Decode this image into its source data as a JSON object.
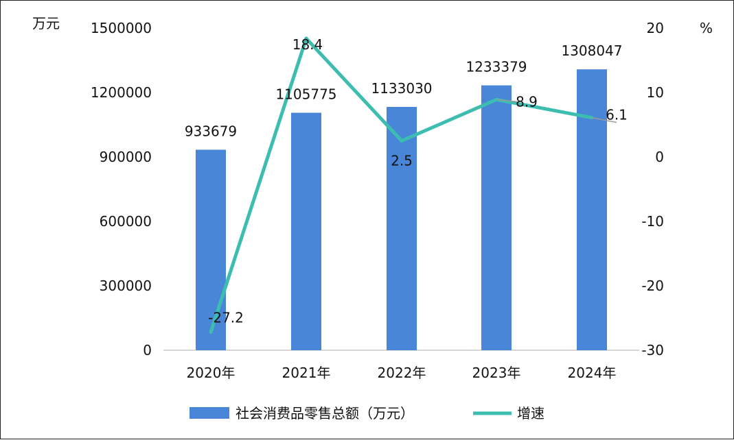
{
  "chart_data": {
    "type": "bar",
    "categories": [
      "2020年",
      "2021年",
      "2022年",
      "2023年",
      "2024年"
    ],
    "series": [
      {
        "name": "社会消费品零售总额（万元）",
        "type": "bar",
        "axis": "left",
        "values": [
          933679,
          1105775,
          1133030,
          1233379,
          1308047
        ],
        "labels": [
          "933679",
          "1105775",
          "1133030",
          "1233379",
          "1308047"
        ],
        "color": "#4a86d8"
      },
      {
        "name": "增速",
        "type": "line",
        "axis": "right",
        "values": [
          -27.2,
          18.4,
          2.5,
          8.9,
          6.1
        ],
        "labels": [
          "-27.2",
          "18.4",
          "2.5",
          "8.9",
          "6.1"
        ],
        "color": "#3dbdb0"
      }
    ],
    "left_axis": {
      "unit": "万元",
      "ylim": [
        0,
        1500000
      ],
      "ticks": [
        "0",
        "300000",
        "600000",
        "900000",
        "1200000",
        "1500000"
      ]
    },
    "right_axis": {
      "unit": "%",
      "ylim": [
        -30,
        20
      ],
      "ticks": [
        "-30",
        "-20",
        "-10",
        "0",
        "10",
        "20"
      ]
    },
    "grid": false,
    "legend_position": "bottom"
  }
}
